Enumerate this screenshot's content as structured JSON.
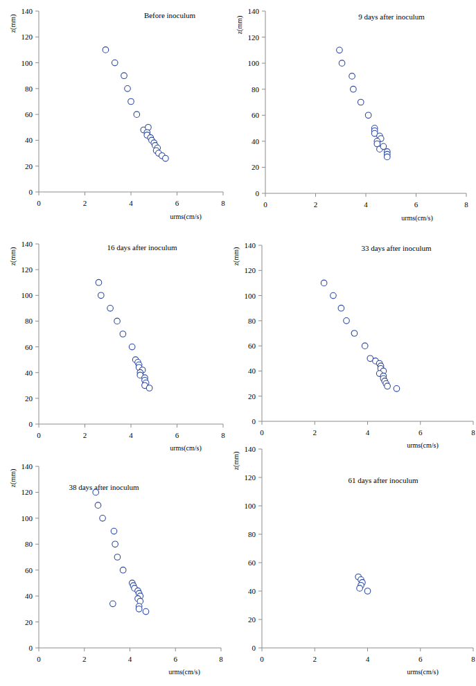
{
  "chart_data": [
    {
      "type": "scatter",
      "title": "Before inoculum",
      "x_label": "urms(cm/s)",
      "y_label": "z(mm)",
      "x": [
        2.9,
        3.3,
        3.7,
        3.85,
        4.0,
        4.25,
        4.55,
        4.75,
        4.7,
        4.7,
        4.85,
        4.9,
        5.0,
        5.05,
        5.15,
        5.1,
        5.2,
        5.35,
        5.5
      ],
      "values": [
        110,
        100,
        90,
        80,
        70,
        60,
        48,
        50,
        46,
        44,
        42,
        40,
        38,
        36,
        34,
        32,
        30,
        28,
        26
      ],
      "color": "#2e4a9e",
      "marker": "circle",
      "xlim": [
        0,
        8
      ],
      "xticks": [
        0,
        2,
        4,
        6,
        8
      ],
      "ylim": [
        0,
        140
      ],
      "yticks": [
        0,
        20,
        40,
        60,
        80,
        100,
        120,
        140
      ]
    },
    {
      "type": "scatter",
      "title": "9 days after inoculum",
      "x_label": "urms(cm/s)",
      "y_label": "z(mm)",
      "x": [
        2.95,
        3.05,
        3.45,
        3.5,
        3.8,
        4.1,
        4.35,
        4.35,
        4.35,
        4.55,
        4.6,
        4.45,
        4.45,
        4.55,
        4.7,
        4.85,
        4.85,
        4.85
      ],
      "values": [
        110,
        100,
        90,
        80,
        70,
        60,
        50,
        48,
        46,
        44,
        42,
        40,
        38,
        34,
        36,
        32,
        30,
        28
      ],
      "color": "#2e4a9e",
      "marker": "circle",
      "xlim": [
        0,
        8
      ],
      "xticks": [
        0,
        2,
        4,
        6,
        8
      ],
      "ylim": [
        0,
        140
      ],
      "yticks": [
        0,
        20,
        40,
        60,
        80,
        100,
        120,
        140
      ]
    },
    {
      "type": "scatter",
      "title": "16 days after inoculum",
      "x_label": "urms(cm/s)",
      "y_label": "z(mm)",
      "x": [
        2.6,
        2.7,
        3.1,
        3.4,
        3.65,
        4.05,
        4.2,
        4.3,
        4.35,
        4.35,
        4.5,
        4.4,
        4.4,
        4.6,
        4.6,
        4.65,
        4.6,
        4.8
      ],
      "values": [
        110,
        100,
        90,
        80,
        70,
        60,
        50,
        48,
        46,
        44,
        42,
        40,
        38,
        36,
        34,
        32,
        30,
        28
      ],
      "color": "#2e4a9e",
      "marker": "circle",
      "xlim": [
        0,
        8
      ],
      "xticks": [
        0,
        2,
        4,
        6,
        8
      ],
      "ylim": [
        0,
        140
      ],
      "yticks": [
        0,
        20,
        40,
        60,
        80,
        100,
        120,
        140
      ]
    },
    {
      "type": "scatter",
      "title": "33 days after inoculum",
      "x_label": "urms(cm/s)",
      "y_label": "z(mm)",
      "x": [
        2.35,
        2.7,
        3.0,
        3.2,
        3.5,
        3.9,
        4.1,
        4.3,
        4.45,
        4.5,
        4.5,
        4.6,
        4.45,
        4.6,
        4.6,
        4.65,
        4.7,
        4.75,
        5.1
      ],
      "values": [
        110,
        100,
        90,
        80,
        70,
        60,
        50,
        48,
        46,
        44,
        42,
        40,
        38,
        36,
        34,
        32,
        30,
        28,
        26
      ],
      "color": "#2e4a9e",
      "marker": "circle",
      "xlim": [
        0,
        8
      ],
      "xticks": [
        0,
        2,
        4,
        6,
        8
      ],
      "ylim": [
        0,
        140
      ],
      "yticks": [
        0,
        20,
        40,
        60,
        80,
        100,
        120,
        140
      ]
    },
    {
      "type": "scatter",
      "title": "38 days after inoculum",
      "x_label": "urms(cm/s)",
      "y_label": "z(mm)",
      "x": [
        2.5,
        2.6,
        2.8,
        3.3,
        3.35,
        3.45,
        3.7,
        4.1,
        4.15,
        4.2,
        4.35,
        4.4,
        4.45,
        4.35,
        4.45,
        4.4,
        4.4,
        4.7,
        3.25
      ],
      "values": [
        120,
        110,
        100,
        90,
        80,
        70,
        60,
        50,
        48,
        46,
        44,
        42,
        40,
        38,
        36,
        32,
        30,
        28,
        34
      ],
      "color": "#2e4a9e",
      "marker": "circle",
      "xlim": [
        0,
        8
      ],
      "xticks": [
        0,
        2,
        4,
        6,
        8
      ],
      "ylim": [
        0,
        140
      ],
      "yticks": [
        0,
        20,
        40,
        60,
        80,
        100,
        120,
        140
      ]
    },
    {
      "type": "scatter",
      "title": "61 days after  inoculum",
      "x_label": "urms(cm/s)",
      "y_label": "z(mm)",
      "x": [
        3.65,
        3.75,
        3.8,
        3.75,
        3.7,
        4.0
      ],
      "values": [
        50,
        48,
        46,
        44,
        42,
        40
      ],
      "color": "#2e4a9e",
      "marker": "circle",
      "xlim": [
        0,
        8
      ],
      "xticks": [
        0,
        2,
        4,
        6,
        8
      ],
      "ylim": [
        0,
        140
      ],
      "yticks": [
        0,
        20,
        40,
        60,
        80,
        100,
        120,
        140
      ]
    }
  ]
}
